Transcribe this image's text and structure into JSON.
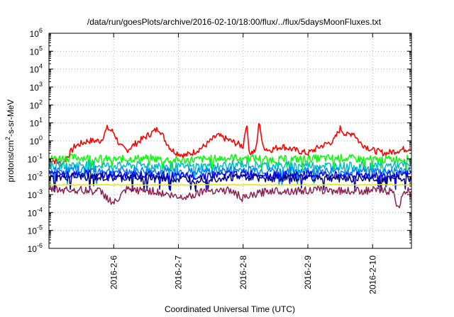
{
  "chart_data": {
    "type": "line",
    "title": "/data/run/goesPlots/archive/2016-02-10/18:00/flux/../flux/5daysMoonFluxes.txt",
    "xlabel": "Coordinated Universal Time (UTC)",
    "ylabel": {
      "prefix": "protons/cm",
      "sup": "2",
      "suffix": "-s-sr-MeV"
    },
    "y_scale": "log",
    "ylim": [
      1e-06,
      1000000.0
    ],
    "y_ticks": [
      {
        "base": "10",
        "exp": "-6",
        "value": -6
      },
      {
        "base": "10",
        "exp": "-5",
        "value": -5
      },
      {
        "base": "10",
        "exp": "-4",
        "value": -4
      },
      {
        "base": "10",
        "exp": "-3",
        "value": -3
      },
      {
        "base": "10",
        "exp": "-2",
        "value": -2
      },
      {
        "base": "10",
        "exp": "-1",
        "value": -1
      },
      {
        "base": "10",
        "exp": "0",
        "value": 0
      },
      {
        "base": "10",
        "exp": "1",
        "value": 1
      },
      {
        "base": "10",
        "exp": "2",
        "value": 2
      },
      {
        "base": "10",
        "exp": "3",
        "value": 3
      },
      {
        "base": "10",
        "exp": "4",
        "value": 4
      },
      {
        "base": "10",
        "exp": "5",
        "value": 5
      },
      {
        "base": "10",
        "exp": "6",
        "value": 6
      }
    ],
    "x_range_days": [
      2016.0209,
      2016.0359
    ],
    "xlim": [
      0,
      5.6
    ],
    "x_ticks": [
      {
        "label": "2016-2-6",
        "value": 1.0
      },
      {
        "label": "2016-2-7",
        "value": 2.0
      },
      {
        "label": "2016-2-8",
        "value": 3.0
      },
      {
        "label": "2016-2-9",
        "value": 4.0
      },
      {
        "label": "2016-2-10",
        "value": 5.0
      }
    ],
    "grid": true,
    "series": [
      {
        "color": "#ff0000",
        "x": [
          0,
          0.2,
          0.4,
          0.6,
          0.8,
          0.9,
          1.0,
          1.1,
          1.2,
          1.4,
          1.6,
          1.7,
          1.8,
          1.9,
          2.0,
          2.1,
          2.2,
          2.4,
          2.6,
          2.8,
          3.0,
          3.05,
          3.1,
          3.2,
          3.25,
          3.3,
          3.4,
          3.6,
          3.8,
          4.0,
          4.2,
          4.4,
          4.5,
          4.6,
          4.7,
          4.8,
          5.0,
          5.2,
          5.4,
          5.6
        ],
        "y": [
          0.1,
          0.05,
          0.5,
          1,
          1,
          5,
          3,
          0.5,
          0.3,
          1,
          3,
          5,
          1,
          0.3,
          0.2,
          0.15,
          0.2,
          0.5,
          2,
          1,
          0.5,
          10,
          0.2,
          0.3,
          15,
          0.5,
          0.3,
          0.5,
          0.3,
          0.2,
          0.5,
          1,
          5,
          2,
          3,
          0.8,
          0.3,
          0.2,
          0.3,
          0.4
        ]
      },
      {
        "color": "#00ff00",
        "x": [
          0,
          0.5,
          1,
          1.5,
          2,
          2.5,
          3,
          3.5,
          4,
          4.5,
          5,
          5.6
        ],
        "y": [
          0.1,
          0.12,
          0.09,
          0.11,
          0.08,
          0.1,
          0.12,
          0.09,
          0.1,
          0.11,
          0.09,
          0.1
        ]
      },
      {
        "color": "#00bfbf",
        "x": [
          0,
          0.5,
          1,
          1.5,
          2,
          2.5,
          3,
          3.5,
          4,
          4.5,
          5,
          5.6
        ],
        "y": [
          0.04,
          0.05,
          0.04,
          0.045,
          0.035,
          0.04,
          0.05,
          0.04,
          0.045,
          0.04,
          0.04,
          0.045
        ]
      },
      {
        "color": "#0080ff",
        "x": [
          0,
          0.5,
          1,
          1.5,
          2,
          2.5,
          3,
          3.5,
          4,
          4.5,
          5,
          5.6
        ],
        "y": [
          0.02,
          0.025,
          0.02,
          0.022,
          0.018,
          0.02,
          0.025,
          0.02,
          0.022,
          0.02,
          0.02,
          0.022
        ]
      },
      {
        "color": "#0000ff",
        "x": [
          0,
          0.5,
          1,
          1.5,
          2,
          2.5,
          3,
          3.5,
          4,
          4.5,
          5,
          5.6
        ],
        "y": [
          0.012,
          0.015,
          0.012,
          0.013,
          0.01,
          0.012,
          0.015,
          0.012,
          0.013,
          0.012,
          0.012,
          0.013
        ]
      },
      {
        "color": "#00008b",
        "x": [
          0,
          0.5,
          1,
          1.5,
          2,
          2.5,
          3,
          3.5,
          4,
          4.5,
          5,
          5.6
        ],
        "y": [
          0.008,
          0.01,
          0.008,
          0.009,
          0.007,
          0.008,
          0.01,
          0.008,
          0.009,
          0.008,
          0.008,
          0.009
        ]
      },
      {
        "color": "#e6e600",
        "x": [
          0,
          0.5,
          1,
          1.5,
          2,
          2.5,
          3,
          3.5,
          4,
          4.5,
          5,
          5.6
        ],
        "y": [
          0.0035,
          0.0035,
          0.0035,
          0.0035,
          0.0035,
          0.0035,
          0.0035,
          0.0035,
          0.0035,
          0.0035,
          0.0035,
          0.0035
        ]
      },
      {
        "color": "#8b2252",
        "x": [
          0,
          0.4,
          0.8,
          1.0,
          1.2,
          1.6,
          2.0,
          2.2,
          2.4,
          2.8,
          3.0,
          3.4,
          3.8,
          4.2,
          4.6,
          5.0,
          5.3,
          5.4,
          5.5,
          5.6
        ],
        "y": [
          0.002,
          0.0018,
          0.0015,
          0.0003,
          0.0018,
          0.0016,
          0.0007,
          0.0009,
          0.0018,
          0.0017,
          0.0006,
          0.0017,
          0.0016,
          0.0018,
          0.0016,
          0.0017,
          0.0016,
          0.0002,
          0.0015,
          0.0016
        ]
      }
    ]
  }
}
